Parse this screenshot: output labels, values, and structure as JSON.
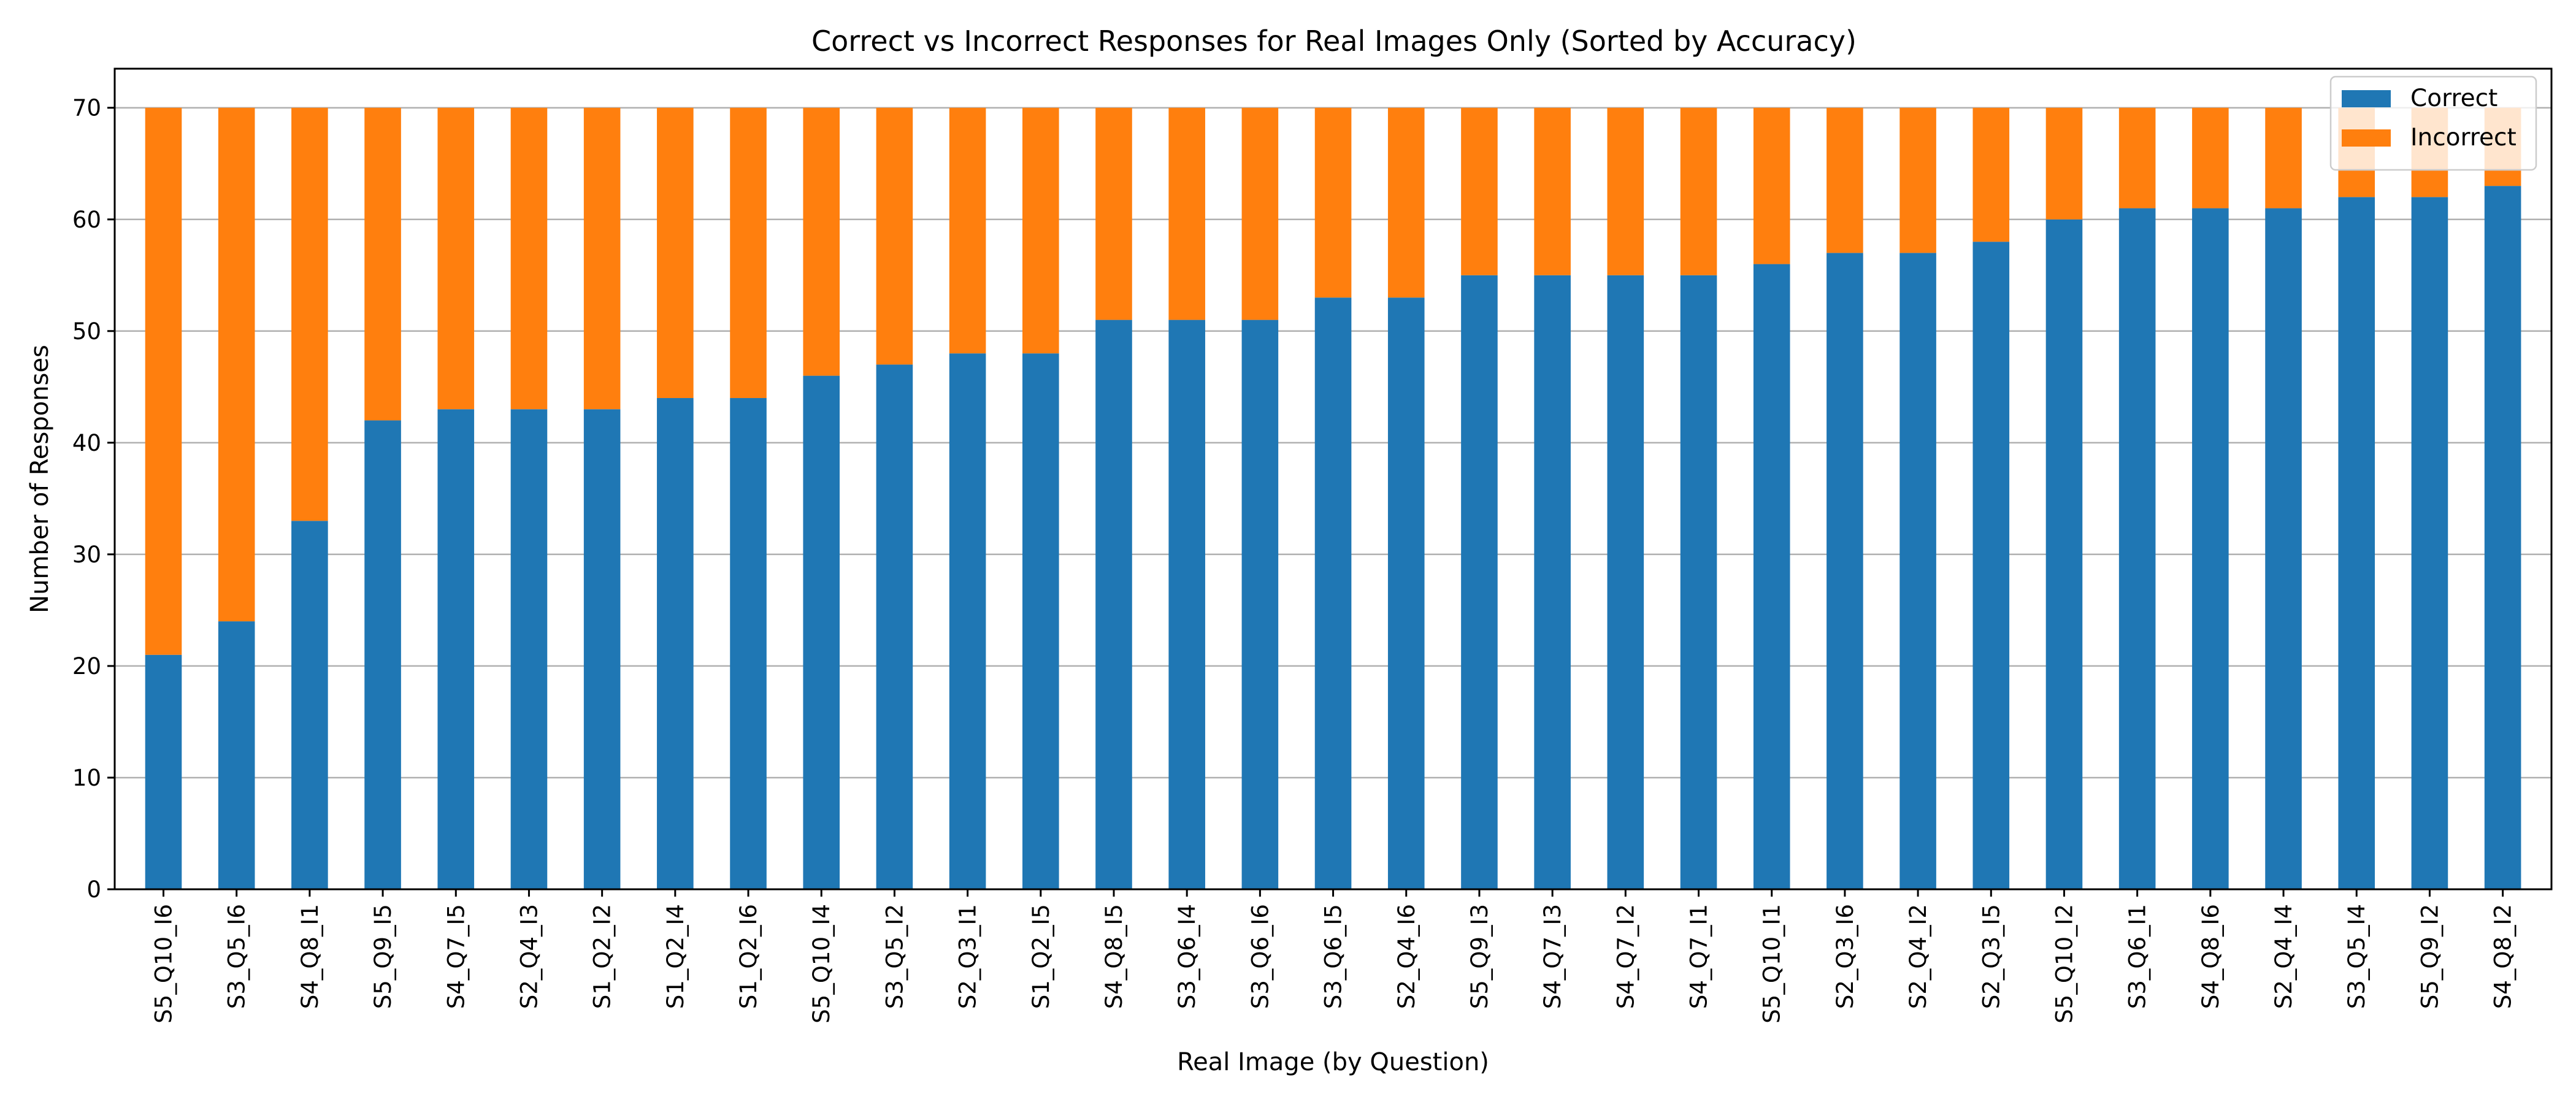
{
  "chart_data": {
    "type": "bar",
    "stacked": true,
    "title": "Correct vs Incorrect Responses for Real Images Only (Sorted by Accuracy)",
    "xlabel": "Real Image (by Question)",
    "ylabel": "Number of Responses",
    "ylim": [
      0,
      73.5
    ],
    "yticks": [
      0,
      10,
      20,
      30,
      40,
      50,
      60,
      70
    ],
    "grid": "horizontal",
    "legend_position": "top-right",
    "categories": [
      "S5_Q10_I6",
      "S3_Q5_I6",
      "S4_Q8_I1",
      "S5_Q9_I5",
      "S4_Q7_I5",
      "S2_Q4_I3",
      "S1_Q2_I2",
      "S1_Q2_I4",
      "S1_Q2_I6",
      "S5_Q10_I4",
      "S3_Q5_I2",
      "S2_Q3_I1",
      "S1_Q2_I5",
      "S4_Q8_I5",
      "S3_Q6_I4",
      "S3_Q6_I6",
      "S3_Q6_I5",
      "S2_Q4_I6",
      "S5_Q9_I3",
      "S4_Q7_I3",
      "S4_Q7_I2",
      "S4_Q7_I1",
      "S5_Q10_I1",
      "S2_Q3_I6",
      "S2_Q4_I2",
      "S2_Q3_I5",
      "S5_Q10_I2",
      "S3_Q6_I1",
      "S4_Q8_I6",
      "S2_Q4_I4",
      "S3_Q5_I4",
      "S5_Q9_I2",
      "S4_Q8_I2"
    ],
    "series": [
      {
        "name": "Correct",
        "color": "#1f77b4",
        "values": [
          21,
          24,
          33,
          42,
          43,
          43,
          43,
          44,
          44,
          46,
          47,
          48,
          48,
          51,
          51,
          51,
          53,
          53,
          55,
          55,
          55,
          55,
          56,
          57,
          57,
          58,
          60,
          61,
          61,
          61,
          62,
          62,
          63
        ]
      },
      {
        "name": "Incorrect",
        "color": "#ff7f0e",
        "values": [
          49,
          46,
          37,
          28,
          27,
          27,
          27,
          26,
          26,
          24,
          23,
          22,
          22,
          19,
          19,
          19,
          17,
          17,
          15,
          15,
          15,
          15,
          14,
          13,
          13,
          12,
          10,
          9,
          9,
          9,
          8,
          8,
          7
        ]
      }
    ]
  }
}
